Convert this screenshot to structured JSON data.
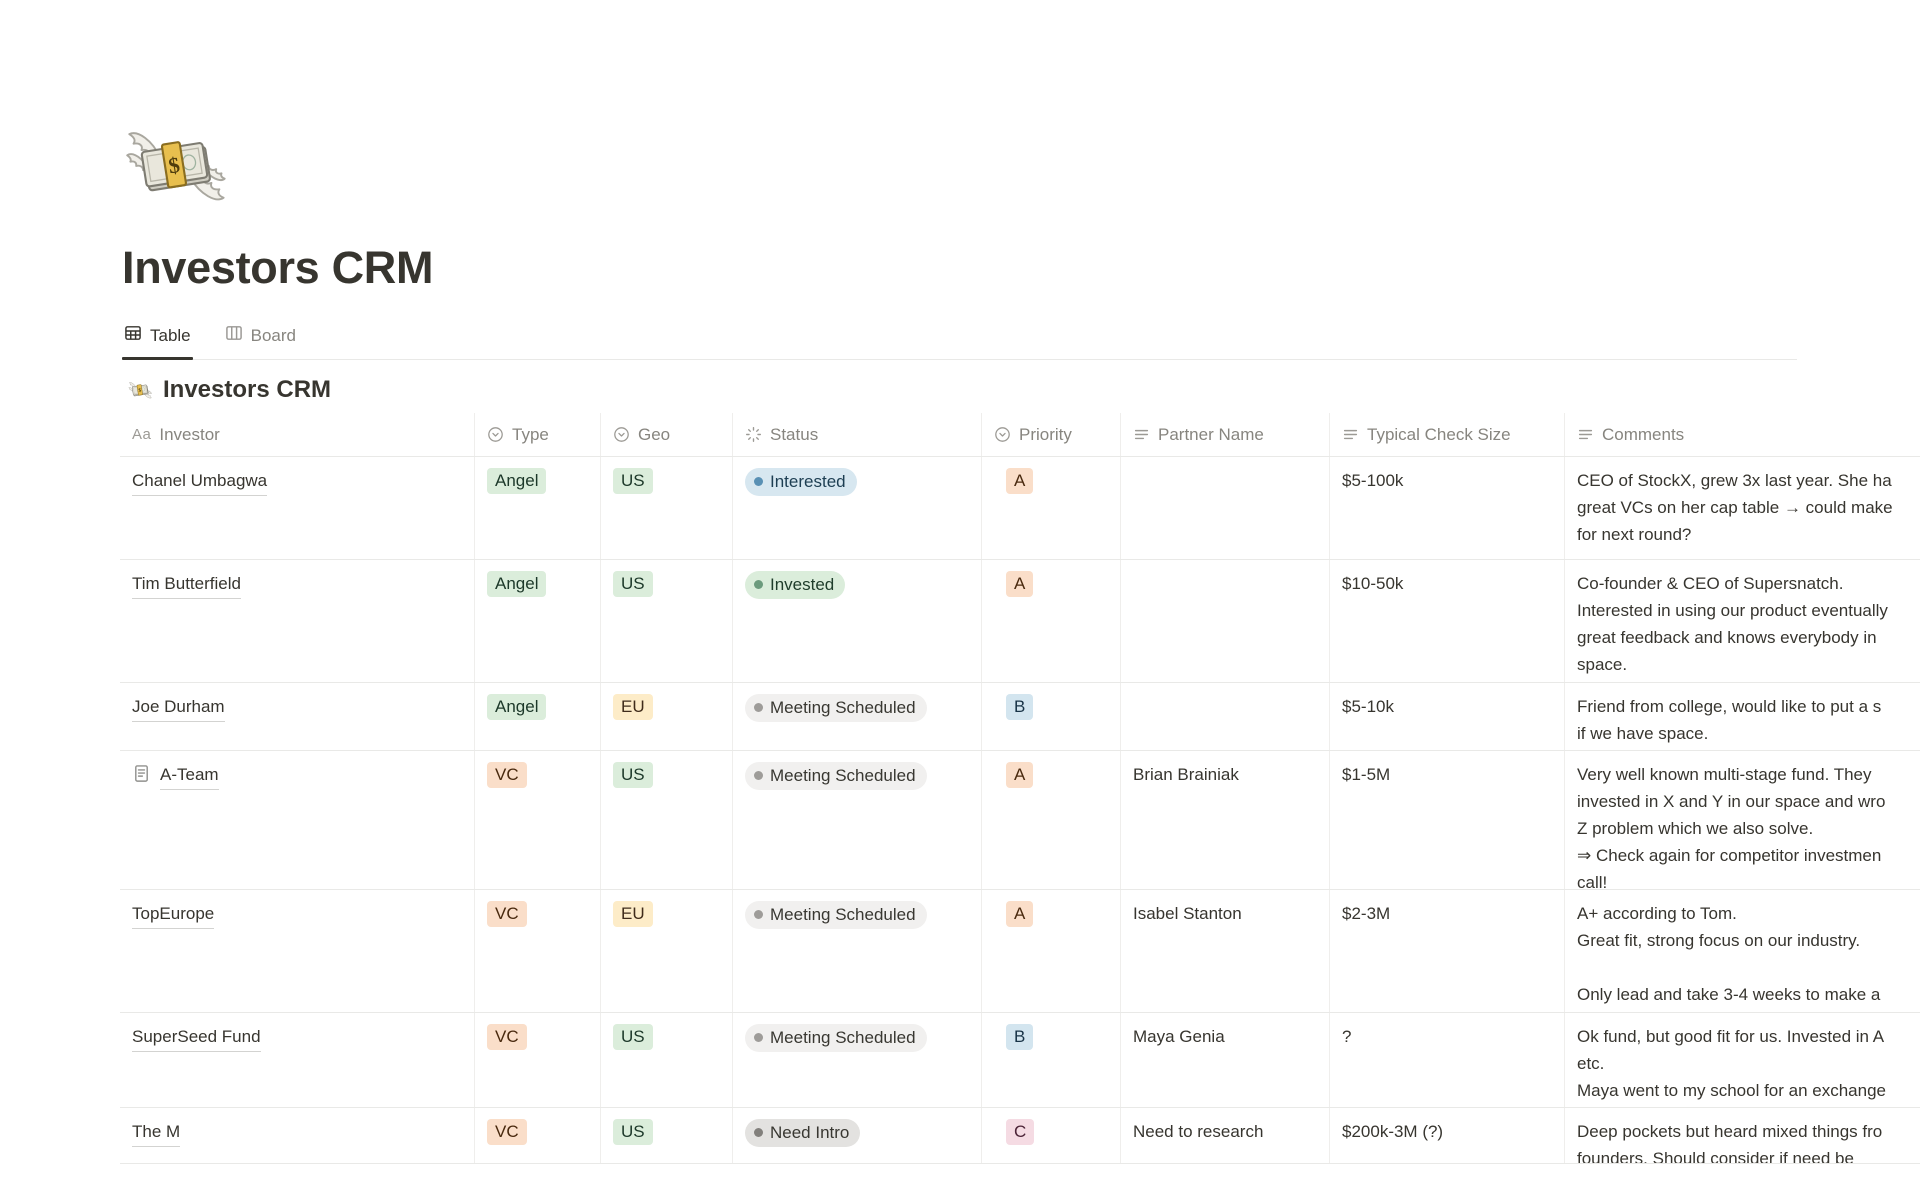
{
  "page": {
    "icon": "money-with-wings-emoji",
    "title": "Investors CRM",
    "tabs": [
      {
        "label": "Table",
        "icon": "table-view-icon",
        "active": true
      },
      {
        "label": "Board",
        "icon": "board-view-icon",
        "active": false
      }
    ],
    "section_emoji": "money-with-wings-emoji",
    "section_title": "Investors CRM"
  },
  "table": {
    "columns": [
      {
        "label": "Investor",
        "icon": "title-icon"
      },
      {
        "label": "Type",
        "icon": "select-icon"
      },
      {
        "label": "Geo",
        "icon": "select-icon"
      },
      {
        "label": "Status",
        "icon": "status-icon"
      },
      {
        "label": "Priority",
        "icon": "select-icon"
      },
      {
        "label": "Partner Name",
        "icon": "text-icon"
      },
      {
        "label": "Typical Check Size",
        "icon": "text-icon"
      },
      {
        "label": "Comments",
        "icon": "text-icon"
      }
    ],
    "rows": [
      {
        "investor": "Chanel Umbagwa",
        "has_page_icon": false,
        "type": "Angel",
        "type_color": "green",
        "geo": "US",
        "geo_color": "green",
        "status": "Interested",
        "status_color": "blue",
        "priority": "A",
        "priority_color": "orange",
        "partner": "",
        "check_size": "$5-100k",
        "comments": "CEO of StockX, grew 3x last year. She ha\ngreat VCs on her cap table → could make\nfor next round?"
      },
      {
        "investor": "Tim Butterfield",
        "has_page_icon": false,
        "type": "Angel",
        "type_color": "green",
        "geo": "US",
        "geo_color": "green",
        "status": "Invested",
        "status_color": "green",
        "priority": "A",
        "priority_color": "orange",
        "partner": "",
        "check_size": "$10-50k",
        "comments": "Co-founder & CEO of Supersnatch.\nInterested in using our product eventually\ngreat feedback and knows everybody in\nspace."
      },
      {
        "investor": "Joe Durham",
        "has_page_icon": false,
        "type": "Angel",
        "type_color": "green",
        "geo": "EU",
        "geo_color": "yellow",
        "status": "Meeting Scheduled",
        "status_color": "gray_light",
        "priority": "B",
        "priority_color": "blue",
        "partner": "",
        "check_size": "$5-10k",
        "comments": "Friend from college, would like to put a s\nif we have space."
      },
      {
        "investor": "A-Team",
        "has_page_icon": true,
        "type": "VC",
        "type_color": "orange",
        "geo": "US",
        "geo_color": "green",
        "status": "Meeting Scheduled",
        "status_color": "gray_light",
        "priority": "A",
        "priority_color": "orange",
        "partner": "Brian Brainiak",
        "check_size": "$1-5M",
        "comments": "Very well known multi-stage fund. They\ninvested in X and Y in our space and wro\nZ problem which we also solve.\n⇒ Check again for competitor investmen\ncall!"
      },
      {
        "investor": "TopEurope",
        "has_page_icon": false,
        "type": "VC",
        "type_color": "orange",
        "geo": "EU",
        "geo_color": "yellow",
        "status": "Meeting Scheduled",
        "status_color": "gray_light",
        "priority": "A",
        "priority_color": "orange",
        "partner": "Isabel Stanton",
        "check_size": "$2-3M",
        "comments": "A+ according to Tom.\nGreat fit, strong focus on our industry.\n\nOnly lead and take 3-4 weeks to make a"
      },
      {
        "investor": "SuperSeed Fund",
        "has_page_icon": false,
        "type": "VC",
        "type_color": "orange",
        "geo": "US",
        "geo_color": "green",
        "status": "Meeting Scheduled",
        "status_color": "gray_light",
        "priority": "B",
        "priority_color": "blue",
        "partner": "Maya Genia",
        "check_size": "?",
        "comments": "Ok fund, but good fit for us. Invested in A\netc.\nMaya went to my school for an exchange"
      },
      {
        "investor": "The M",
        "has_page_icon": false,
        "type": "VC",
        "type_color": "orange",
        "geo": "US",
        "geo_color": "green",
        "status": "Need Intro",
        "status_color": "gray",
        "priority": "C",
        "priority_color": "pink",
        "partner": "Need to research",
        "check_size": "$200k-3M (?)",
        "comments": "Deep pockets but heard mixed things fro\nfounders. Should consider if need be"
      }
    ]
  },
  "colors": {
    "text": "#37352F",
    "muted_text": "#87857F",
    "border": "#E9E9E7",
    "tags": {
      "green": {
        "bg": "#DBEDDB",
        "text": "#1C3829"
      },
      "orange": {
        "bg": "#FADEC9",
        "text": "#49290E"
      },
      "yellow": {
        "bg": "#FDECC8",
        "text": "#402C1B"
      },
      "blue": {
        "bg": "#D3E5EF",
        "text": "#183347"
      },
      "pink": {
        "bg": "#F5DBE3",
        "text": "#4C2337"
      }
    },
    "status": {
      "blue": {
        "bg": "#D7E7F0",
        "dot": "#5990B4",
        "text": "#1D3E52"
      },
      "green": {
        "bg": "#DBEDDB",
        "dot": "#6C9B7D",
        "text": "#1F3D2B"
      },
      "gray_light": {
        "bg": "#F1F0EF",
        "dot": "#9E9C99",
        "text": "#383731"
      },
      "gray": {
        "bg": "#E3E2E0",
        "dot": "#82807C",
        "text": "#383731"
      }
    }
  }
}
